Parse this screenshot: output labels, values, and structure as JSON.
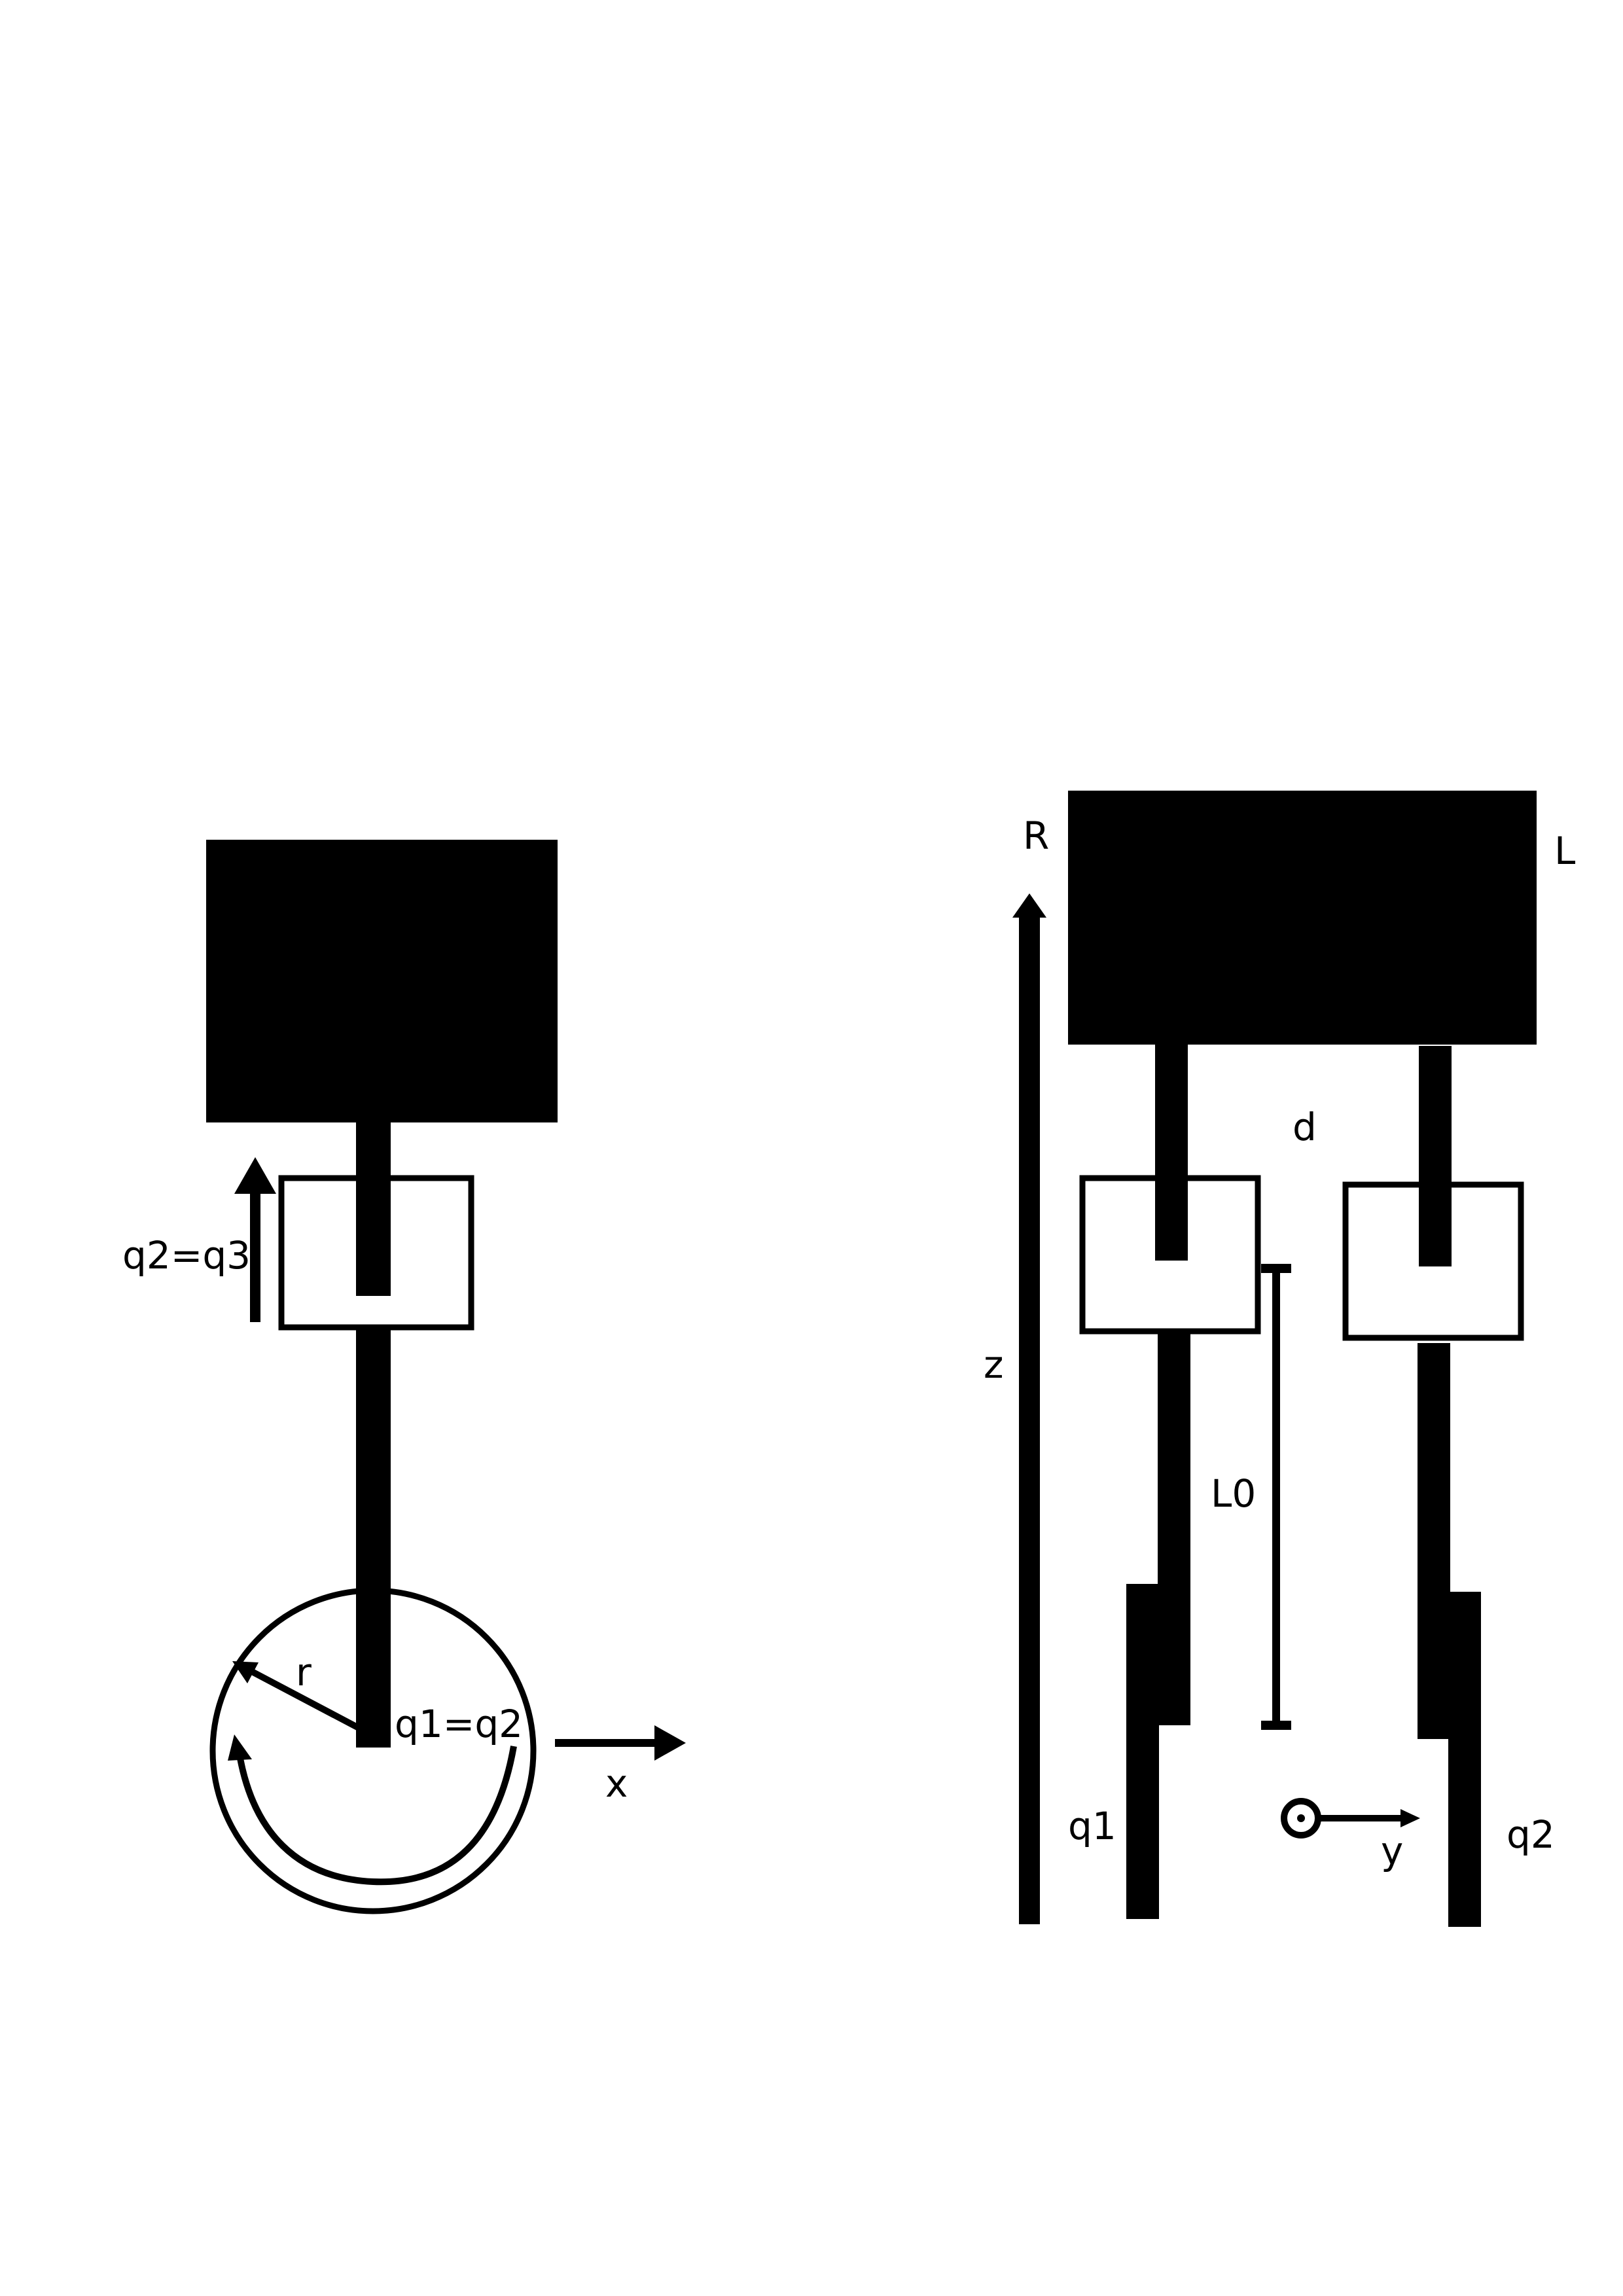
{
  "colors": {
    "ink": "#000000",
    "background": "#ffffff"
  },
  "left_view": {
    "radius_label": "r",
    "revolute_label": "q1=q2",
    "prismatic_label": "q2=q3",
    "axis_x_label": "x"
  },
  "right_view": {
    "right_label": "R",
    "left_label": "L",
    "offset_label": "d",
    "length_label": "L0",
    "axis_z_label": "z",
    "axis_y_label": "y",
    "leg1_label": "q1",
    "leg2_label": "q2"
  },
  "icons": {
    "axis_out_of_page": "circle-dot-icon",
    "arrow": "arrowhead-icon"
  }
}
